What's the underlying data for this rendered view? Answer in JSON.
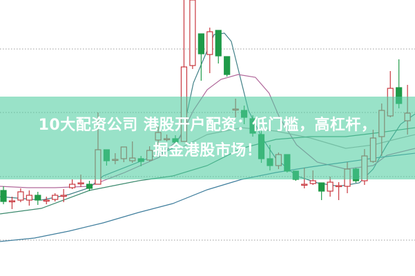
{
  "banner": {
    "line1": "10大配资公司 港股开户配资：低门槛，高杠杆，",
    "line2": "掘金港股市场！"
  },
  "chart_data": {
    "type": "candlestick",
    "title": "",
    "xlabel": "",
    "ylabel": "",
    "grid": "horizontal dotted",
    "colors": {
      "up": "#c8363d",
      "down": "#1f9a48",
      "banner": "#8fdcc3"
    },
    "candles_ohlc": [
      [
        124,
        130,
        104,
        108
      ],
      [
        109,
        115,
        97,
        109
      ],
      [
        110,
        127,
        107,
        122
      ],
      [
        110,
        124,
        102,
        117
      ],
      [
        117,
        122,
        103,
        110
      ],
      [
        110,
        115,
        104,
        110
      ],
      [
        111,
        120,
        108,
        117
      ],
      [
        117,
        126,
        107,
        117
      ],
      [
        128,
        140,
        126,
        133
      ],
      [
        135,
        147,
        129,
        135
      ],
      [
        133,
        138,
        123,
        127
      ],
      [
        133,
        237,
        133,
        183
      ],
      [
        183,
        183,
        160,
        167
      ],
      [
        169,
        178,
        162,
        169
      ],
      [
        170,
        187,
        165,
        187
      ],
      [
        167,
        195,
        164,
        171
      ],
      [
        170,
        174,
        159,
        166
      ],
      [
        168,
        188,
        166,
        182
      ],
      [
        197,
        217,
        190,
        208
      ],
      [
        199,
        205,
        195,
        199
      ],
      [
        199,
        204,
        192,
        194
      ],
      [
        195,
        400,
        195,
        303
      ],
      [
        305,
        400,
        300,
        400
      ],
      [
        351,
        351,
        283,
        322
      ],
      [
        321,
        360,
        294,
        354
      ],
      [
        356,
        356,
        308,
        319
      ],
      [
        318,
        318,
        289,
        292
      ],
      [
        242,
        257,
        230,
        242
      ],
      [
        240,
        247,
        220,
        230
      ],
      [
        228,
        233,
        202,
        207
      ],
      [
        205,
        210,
        164,
        170
      ],
      [
        170,
        190,
        153,
        160
      ],
      [
        160,
        179,
        155,
        176
      ],
      [
        176,
        176,
        150,
        152
      ],
      [
        152,
        152,
        138,
        140
      ],
      [
        133,
        157,
        127,
        133
      ],
      [
        134,
        153,
        132,
        138
      ],
      [
        135,
        135,
        110,
        123
      ],
      [
        123,
        144,
        115,
        136
      ],
      [
        131,
        136,
        110,
        131
      ],
      [
        130,
        165,
        120,
        155
      ],
      [
        155,
        157,
        135,
        138
      ],
      [
        138,
        184,
        132,
        174
      ],
      [
        166,
        212,
        164,
        200
      ],
      [
        202,
        250,
        174,
        240
      ],
      [
        232,
        297,
        230,
        272
      ],
      [
        273,
        314,
        243,
        250
      ],
      [
        225,
        277,
        205,
        236
      ]
    ],
    "moving_averages": [
      {
        "color": "#3f7f86",
        "points": [
          [
            -0.4,
            115
          ],
          [
            4.4,
            110
          ],
          [
            7.6,
            118
          ],
          [
            10,
            128
          ],
          [
            11.6,
            145
          ],
          [
            15.7,
            165
          ],
          [
            19.7,
            185
          ],
          [
            20.9,
            210
          ],
          [
            22.1,
            280
          ],
          [
            23.3,
            315
          ],
          [
            24.5,
            350
          ],
          [
            25.7,
            352
          ],
          [
            26.5,
            340
          ],
          [
            27.3,
            300
          ],
          [
            28.5,
            240
          ],
          [
            30.1,
            200
          ],
          [
            31.7,
            170
          ],
          [
            34.1,
            145
          ],
          [
            36.5,
            135
          ],
          [
            39,
            130
          ],
          [
            41.4,
            135
          ],
          [
            43,
            155
          ],
          [
            44.6,
            190
          ],
          [
            46.2,
            220
          ],
          [
            47.9,
            235
          ]
        ]
      },
      {
        "color": "#b0679a",
        "points": [
          [
            -0.4,
            130
          ],
          [
            2.8,
            128
          ],
          [
            6,
            128
          ],
          [
            10,
            130
          ],
          [
            11.6,
            138
          ],
          [
            14.1,
            150
          ],
          [
            18.1,
            172
          ],
          [
            20.5,
            200
          ],
          [
            22.1,
            240
          ],
          [
            23.7,
            270
          ],
          [
            25.3,
            285
          ],
          [
            27.3,
            292
          ],
          [
            29.3,
            288
          ],
          [
            30.9,
            265
          ],
          [
            32.1,
            230
          ],
          [
            34.1,
            190
          ],
          [
            36.5,
            165
          ],
          [
            39.8,
            155
          ],
          [
            43,
            160
          ],
          [
            44.6,
            175
          ],
          [
            47.9,
            185
          ]
        ]
      },
      {
        "color": "#a8a8a8",
        "points": [
          [
            20.5,
            185
          ],
          [
            23.7,
            205
          ],
          [
            27.7,
            215
          ],
          [
            31.7,
            210
          ],
          [
            35.7,
            200
          ],
          [
            39.8,
            185
          ],
          [
            43,
            190
          ],
          [
            46.2,
            200
          ],
          [
            47.9,
            205
          ]
        ]
      },
      {
        "color": "#3c8a6e",
        "points": [
          [
            -0.4,
            90
          ],
          [
            4.4,
            98
          ],
          [
            10,
            124
          ],
          [
            15.7,
            138
          ],
          [
            19.7,
            145
          ],
          [
            23.7,
            160
          ],
          [
            27.7,
            185
          ],
          [
            31.7,
            198
          ],
          [
            35.7,
            202
          ],
          [
            39.8,
            202
          ],
          [
            43.8,
            208
          ],
          [
            47.9,
            215
          ]
        ]
      },
      {
        "color": "#3e7d9c",
        "points": [
          [
            -0.4,
            50
          ],
          [
            3.6,
            55
          ],
          [
            7.6,
            65
          ],
          [
            11.6,
            77
          ],
          [
            15.7,
            92
          ],
          [
            19.7,
            105
          ],
          [
            23.7,
            125
          ],
          [
            27.7,
            140
          ],
          [
            31.7,
            150
          ],
          [
            35.7,
            158
          ],
          [
            39.8,
            165
          ],
          [
            43.8,
            172
          ],
          [
            47.9,
            178
          ]
        ]
      }
    ]
  }
}
